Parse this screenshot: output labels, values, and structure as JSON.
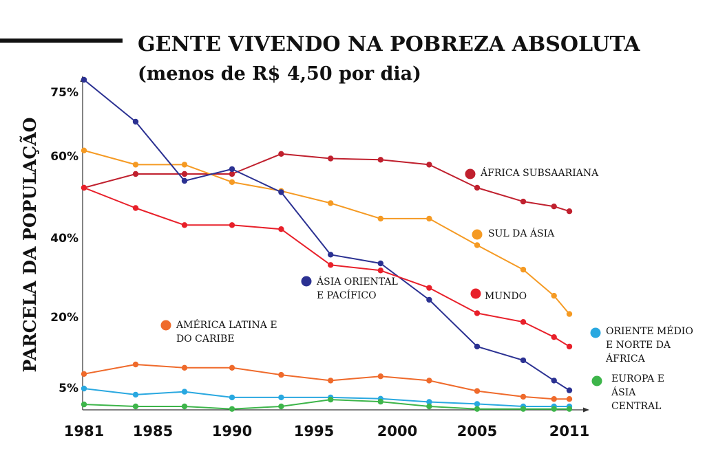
{
  "chart_data": {
    "type": "line",
    "title": "GENTE VIVENDO NA POBREZA ABSOLUTA",
    "subtitle": "(menos de R$ 4,50 por dia)",
    "ylabel": "PARCELA DA POPULAÇÃO",
    "xlabel": "",
    "x_ticks": [
      "1981",
      "1985",
      "1990",
      "1995",
      "2000",
      "2005",
      "2011"
    ],
    "y_ticks": [
      "75%",
      "60%",
      "40%",
      "20%",
      "5%"
    ],
    "grid": false,
    "series": [
      {
        "name": "ÁFRICA SUBSAARIANA",
        "label_lines": [
          "ÁFRICA SUBSAARIANA"
        ],
        "color": "#c0202e",
        "points": [
          [
            1981,
            52.2
          ],
          [
            1984,
            55.6
          ],
          [
            1987,
            55.6
          ],
          [
            1990,
            55.6
          ],
          [
            1993,
            60.5
          ],
          [
            1996,
            59.4
          ],
          [
            1999,
            59.1
          ],
          [
            2002,
            57.9
          ],
          [
            2005,
            52.2
          ],
          [
            2008,
            48.8
          ],
          [
            2010,
            47.6
          ],
          [
            2011,
            46.4
          ]
        ]
      },
      {
        "name": "SUL DA ÁSIA",
        "label_lines": [
          "SUL DA ÁSIA"
        ],
        "color": "#f59a23",
        "points": [
          [
            1981,
            61.3
          ],
          [
            1984,
            57.9
          ],
          [
            1987,
            57.9
          ],
          [
            1990,
            53.6
          ],
          [
            1993,
            51.4
          ],
          [
            1996,
            48.4
          ],
          [
            1999,
            44.6
          ],
          [
            2002,
            44.6
          ],
          [
            2005,
            38.0
          ],
          [
            2008,
            31.8
          ],
          [
            2010,
            25.2
          ],
          [
            2011,
            20.6
          ]
        ]
      },
      {
        "name": "ÁSIA ORIENTAL E PACÍFICO",
        "label_lines": [
          "ÁSIA ORIENTAL",
          "E PACÍFICO"
        ],
        "color": "#2b3192",
        "points": [
          [
            1981,
            77.5
          ],
          [
            1984,
            67.9
          ],
          [
            1987,
            53.9
          ],
          [
            1990,
            56.8
          ],
          [
            1993,
            51.1
          ],
          [
            1996,
            35.6
          ],
          [
            1999,
            33.4
          ],
          [
            2002,
            24.2
          ],
          [
            2005,
            13.6
          ],
          [
            2008,
            10.7
          ],
          [
            2010,
            6.4
          ],
          [
            2011,
            3.6
          ]
        ]
      },
      {
        "name": "MUNDO",
        "label_lines": [
          "MUNDO"
        ],
        "color": "#e8202a",
        "points": [
          [
            1981,
            52.2
          ],
          [
            1984,
            47.2
          ],
          [
            1987,
            43.0
          ],
          [
            1990,
            43.0
          ],
          [
            1993,
            42.0
          ],
          [
            1996,
            33.0
          ],
          [
            1999,
            31.6
          ],
          [
            2002,
            27.2
          ],
          [
            2005,
            20.8
          ],
          [
            2008,
            18.8
          ],
          [
            2010,
            15.6
          ],
          [
            2011,
            13.6
          ]
        ]
      },
      {
        "name": "AMÉRICA LATINA E DO CARIBE",
        "label_lines": [
          "AMÉRICA LATINA E",
          "DO CARIBE"
        ],
        "color": "#ef6a2b",
        "points": [
          [
            1981,
            7.8
          ],
          [
            1984,
            9.8
          ],
          [
            1987,
            9.1
          ],
          [
            1990,
            9.1
          ],
          [
            1993,
            7.6
          ],
          [
            1996,
            6.4
          ],
          [
            1999,
            7.3
          ],
          [
            2002,
            6.4
          ],
          [
            2005,
            3.3
          ],
          [
            2008,
            0.8
          ],
          [
            2010,
            -0.2
          ],
          [
            2011,
            -0.2
          ]
        ]
      },
      {
        "name": "ORIENTE MÉDIO E NORTE DA ÁFRICA",
        "label_lines": [
          "ORIENTE MÉDIO",
          "E NORTE DA",
          "ÁFRICA"
        ],
        "color": "#29a8e0",
        "points": [
          [
            1981,
            4.4
          ],
          [
            1984,
            1.7
          ],
          [
            1987,
            3.0
          ],
          [
            1990,
            0.5
          ],
          [
            1993,
            0.5
          ],
          [
            1996,
            0.5
          ],
          [
            1999,
            -0.1
          ],
          [
            2002,
            -1.5
          ],
          [
            2005,
            -2.4
          ],
          [
            2008,
            -3.5
          ],
          [
            2010,
            -3.5
          ],
          [
            2011,
            -3.5
          ]
        ]
      },
      {
        "name": "EUROPA E ÁSIA CENTRAL",
        "label_lines": [
          "EUROPA E",
          "ÁSIA",
          "CENTRAL"
        ],
        "color": "#3db54a",
        "points": [
          [
            1981,
            -2.6
          ],
          [
            1984,
            -3.5
          ],
          [
            1987,
            -3.5
          ],
          [
            1990,
            -4.6
          ],
          [
            1993,
            -3.5
          ],
          [
            1996,
            -0.5
          ],
          [
            1999,
            -1.4
          ],
          [
            2002,
            -3.5
          ],
          [
            2005,
            -4.6
          ],
          [
            2008,
            -4.6
          ],
          [
            2010,
            -4.6
          ],
          [
            2011,
            -4.6
          ]
        ]
      }
    ]
  }
}
